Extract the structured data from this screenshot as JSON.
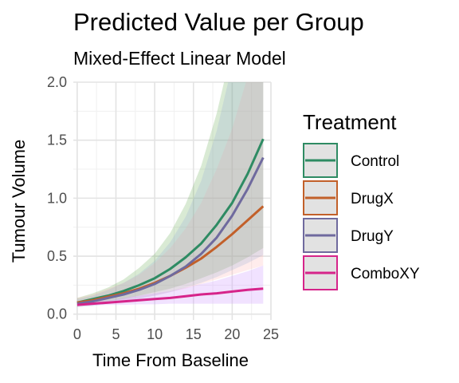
{
  "chart_data": {
    "type": "line",
    "title": "Predicted Value per Group",
    "subtitle": "Mixed-Effect Linear Model",
    "xlabel": "Time From Baseline",
    "ylabel": "Tumour Volume",
    "xlim": [
      -0.5,
      25
    ],
    "ylim": [
      -0.05,
      2.0
    ],
    "x_ticks": [
      0,
      5,
      10,
      15,
      20,
      25
    ],
    "y_ticks": [
      0.0,
      0.5,
      1.0,
      1.5,
      2.0
    ],
    "y_tick_labels": [
      "0.0",
      "0.5",
      "1.0",
      "1.5",
      "2.0"
    ],
    "grid": true,
    "legend_title": "Treatment",
    "legend_position": "right",
    "x": [
      0,
      2,
      4,
      6,
      8,
      10,
      12,
      14,
      16,
      18,
      20,
      22,
      24
    ],
    "series": [
      {
        "name": "Control",
        "color": "#2e8b63",
        "values": [
          0.1,
          0.13,
          0.16,
          0.2,
          0.25,
          0.31,
          0.39,
          0.49,
          0.61,
          0.77,
          0.96,
          1.21,
          1.51
        ],
        "lower": [
          0.07,
          0.09,
          0.11,
          0.13,
          0.16,
          0.19,
          0.22,
          0.26,
          0.31,
          0.36,
          0.42,
          0.49,
          0.57
        ],
        "upper": [
          0.14,
          0.18,
          0.23,
          0.3,
          0.4,
          0.52,
          0.7,
          0.95,
          1.28,
          1.73,
          2.3,
          3.0,
          3.8
        ]
      },
      {
        "name": "DrugX",
        "color": "#c2602a",
        "values": [
          0.1,
          0.12,
          0.15,
          0.18,
          0.22,
          0.27,
          0.33,
          0.4,
          0.48,
          0.58,
          0.69,
          0.81,
          0.93
        ],
        "lower": [
          0.07,
          0.08,
          0.1,
          0.12,
          0.14,
          0.16,
          0.19,
          0.22,
          0.26,
          0.3,
          0.34,
          0.38,
          0.42
        ],
        "upper": [
          0.14,
          0.17,
          0.22,
          0.27,
          0.34,
          0.44,
          0.57,
          0.74,
          0.96,
          1.25,
          1.6,
          2.05,
          2.6
        ]
      },
      {
        "name": "DrugY",
        "color": "#6f6a9e",
        "values": [
          0.09,
          0.11,
          0.14,
          0.17,
          0.21,
          0.26,
          0.33,
          0.41,
          0.52,
          0.66,
          0.85,
          1.08,
          1.35
        ],
        "lower": [
          0.06,
          0.07,
          0.09,
          0.11,
          0.13,
          0.16,
          0.19,
          0.23,
          0.27,
          0.32,
          0.38,
          0.44,
          0.51
        ],
        "upper": [
          0.13,
          0.16,
          0.21,
          0.27,
          0.35,
          0.46,
          0.62,
          0.84,
          1.15,
          1.58,
          2.15,
          2.85,
          3.7
        ]
      },
      {
        "name": "ComboXY",
        "color": "#d6248a",
        "values": [
          0.08,
          0.09,
          0.1,
          0.11,
          0.12,
          0.13,
          0.14,
          0.155,
          0.17,
          0.18,
          0.195,
          0.21,
          0.22
        ],
        "lower": [
          0.07,
          0.075,
          0.08,
          0.08,
          0.085,
          0.085,
          0.09,
          0.09,
          0.09,
          0.09,
          0.09,
          0.09,
          0.09
        ],
        "upper": [
          0.1,
          0.11,
          0.12,
          0.14,
          0.16,
          0.18,
          0.2,
          0.23,
          0.26,
          0.29,
          0.33,
          0.37,
          0.42
        ]
      }
    ]
  }
}
